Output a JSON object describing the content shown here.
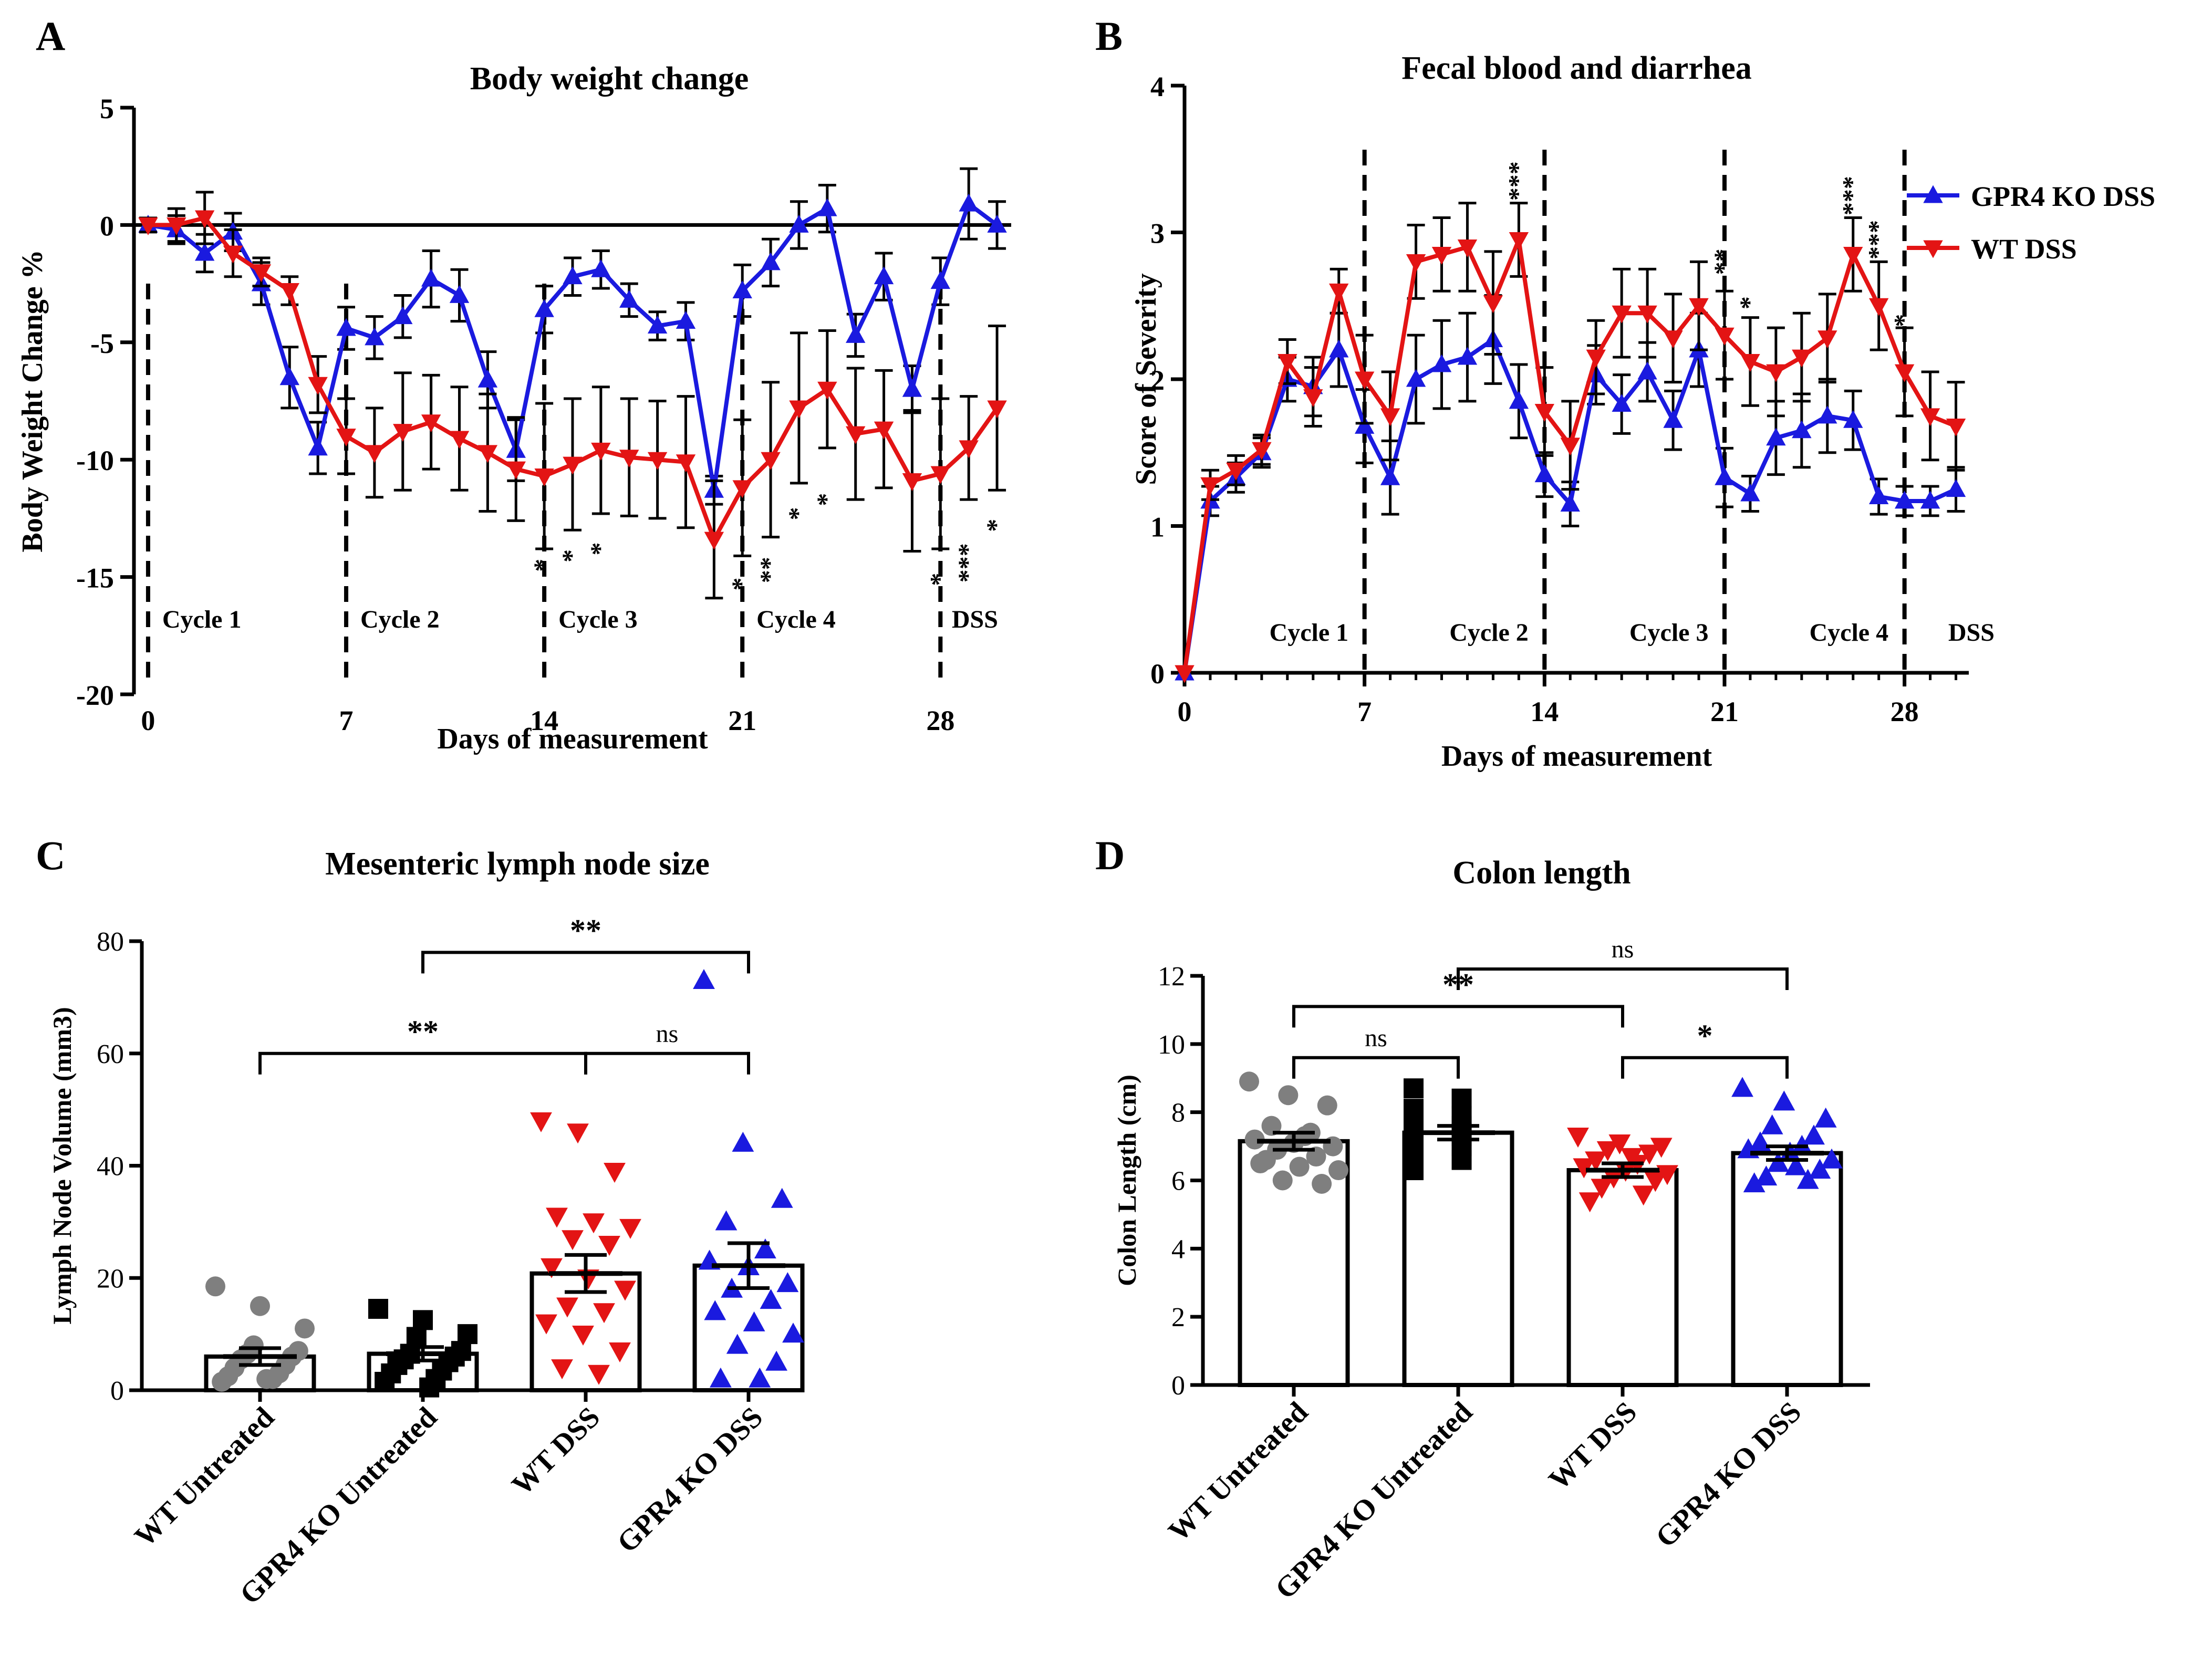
{
  "colors": {
    "ko": "#1a1adf",
    "wt": "#e31414",
    "untreated_wt": "#7f7f7f",
    "untreated_ko": "#000000",
    "axis": "#000000"
  },
  "chart_data": [
    {
      "panel": "A",
      "type": "line",
      "title": "Body weight change",
      "xlabel": "Days of measurement",
      "ylabel": "Body Weight Change %",
      "xlim": [
        -0.5,
        30.5
      ],
      "ylim": [
        -20,
        5
      ],
      "xticks": [
        "0",
        "7",
        "14",
        "21",
        "28"
      ],
      "yticks": [
        "5",
        "0",
        "-5",
        "-10",
        "-15",
        "-20"
      ],
      "cycle_lines": [
        0,
        7,
        14,
        21,
        28
      ],
      "cycle_labels": [
        {
          "x": 0.5,
          "label": "Cycle 1"
        },
        {
          "x": 7.5,
          "label": "Cycle 2"
        },
        {
          "x": 14.5,
          "label": "Cycle 3"
        },
        {
          "x": 21.5,
          "label": "Cycle 4"
        },
        {
          "x": 28.4,
          "label": "DSS"
        }
      ],
      "series": [
        {
          "name": "GPR4 KO DSS",
          "color": "#1a1adf",
          "marker": "triangle-up",
          "x": [
            0,
            1,
            2,
            3,
            4,
            5,
            6,
            7,
            8,
            9,
            10,
            11,
            12,
            13,
            14,
            15,
            16,
            17,
            18,
            19,
            20,
            21,
            22,
            23,
            24,
            25,
            26,
            27,
            28,
            29,
            30
          ],
          "y": [
            0,
            -0.2,
            -1.2,
            -0.3,
            -2.5,
            -6.5,
            -9.5,
            -4.4,
            -4.8,
            -3.9,
            -2.3,
            -3,
            -6.6,
            -9.6,
            -3.6,
            -2.2,
            -1.9,
            -3.2,
            -4.3,
            -4.1,
            -11.3,
            -2.8,
            -1.6,
            0,
            0.7,
            -4.7,
            -2.2,
            -7,
            -2.4,
            0.9,
            0
          ],
          "err": [
            0.3,
            0.6,
            0.8,
            0.8,
            0.9,
            1.3,
            1.1,
            0.9,
            0.9,
            0.9,
            1.2,
            1.1,
            1.2,
            1.3,
            1.0,
            0.8,
            0.8,
            0.7,
            0.6,
            0.8,
            0.6,
            1.1,
            1.0,
            1.0,
            1.0,
            0.9,
            1.0,
            1.0,
            1.0,
            1.5,
            1.0
          ]
        },
        {
          "name": "WT DSS",
          "color": "#e31414",
          "marker": "triangle-down",
          "x": [
            0,
            1,
            2,
            3,
            4,
            5,
            6,
            7,
            8,
            9,
            10,
            11,
            12,
            13,
            14,
            15,
            16,
            17,
            18,
            19,
            20,
            21,
            22,
            23,
            24,
            25,
            26,
            27,
            28,
            29,
            30
          ],
          "y": [
            0,
            0,
            0.3,
            -1.2,
            -2,
            -2.8,
            -6.8,
            -9,
            -9.7,
            -8.8,
            -8.4,
            -9.1,
            -9.7,
            -10.4,
            -10.7,
            -10.2,
            -9.6,
            -9.9,
            -10,
            -10.1,
            -13.4,
            -11.2,
            -10,
            -7.8,
            -7,
            -8.9,
            -8.7,
            -10.9,
            -10.6,
            -9.5,
            -7.8
          ],
          "err": [
            0.3,
            0.7,
            1.1,
            1.0,
            0.6,
            0.6,
            1.2,
            1.6,
            1.9,
            2.5,
            2.0,
            2.2,
            2.5,
            2.2,
            3.1,
            2.8,
            2.7,
            2.5,
            2.5,
            2.8,
            2.5,
            2.9,
            3.3,
            3.2,
            2.5,
            2.8,
            2.5,
            3.0,
            3.2,
            2.2,
            3.5
          ]
        }
      ],
      "annotations": [
        {
          "x": 14,
          "y": -14.5,
          "text": "*"
        },
        {
          "x": 15,
          "y": -14.1,
          "text": "*"
        },
        {
          "x": 16,
          "y": -13.8,
          "text": "*"
        },
        {
          "x": 21,
          "y": -15.3,
          "text": "*"
        },
        {
          "x": 22,
          "y": -14.7,
          "text": "**"
        },
        {
          "x": 23,
          "y": -12.3,
          "text": "*"
        },
        {
          "x": 24,
          "y": -11.7,
          "text": "*"
        },
        {
          "x": 28,
          "y": -15.1,
          "text": "*"
        },
        {
          "x": 29,
          "y": -14.4,
          "text": "***"
        },
        {
          "x": 30,
          "y": -12.8,
          "text": "*"
        }
      ]
    },
    {
      "panel": "B",
      "type": "line",
      "title": "Fecal blood and diarrhea",
      "xlabel": "Days of measurement",
      "ylabel": "Score of Severity",
      "xlim": [
        0,
        30.5
      ],
      "ylim": [
        0,
        4
      ],
      "xticks": [
        "0",
        "7",
        "14",
        "21",
        "28"
      ],
      "yticks": [
        "0",
        "1",
        "2",
        "3",
        "4"
      ],
      "cycle_lines": [
        7,
        14,
        21,
        28
      ],
      "cycle_labels": [
        {
          "x": 3.3,
          "label": "Cycle 1"
        },
        {
          "x": 10.3,
          "label": "Cycle 2"
        },
        {
          "x": 17.3,
          "label": "Cycle 3"
        },
        {
          "x": 24.3,
          "label": "Cycle 4"
        },
        {
          "x": 29.7,
          "label": "DSS"
        }
      ],
      "legend": {
        "placement": "top-right",
        "entries": [
          "GPR4 KO DSS",
          "WT DSS"
        ]
      },
      "series": [
        {
          "name": "GPR4 KO DSS",
          "color": "#1a1adf",
          "marker": "triangle-up",
          "x": [
            0,
            1,
            2,
            3,
            4,
            5,
            6,
            7,
            8,
            9,
            10,
            11,
            12,
            13,
            14,
            15,
            16,
            17,
            18,
            19,
            20,
            21,
            22,
            23,
            24,
            25,
            26,
            27,
            28,
            29,
            30
          ],
          "y": [
            0,
            1.17,
            1.33,
            1.5,
            2.0,
            1.95,
            2.2,
            1.68,
            1.33,
            2.0,
            2.1,
            2.15,
            2.27,
            1.85,
            1.35,
            1.15,
            2.03,
            1.83,
            2.05,
            1.72,
            2.2,
            1.33,
            1.22,
            1.6,
            1.65,
            1.75,
            1.72,
            1.2,
            1.17,
            1.17,
            1.25
          ],
          "err": [
            0,
            0.1,
            0.1,
            0.1,
            0.15,
            0.2,
            0.25,
            0.25,
            0.25,
            0.3,
            0.3,
            0.3,
            0.3,
            0.25,
            0.15,
            0.15,
            0.2,
            0.2,
            0.2,
            0.2,
            0.25,
            0.2,
            0.12,
            0.25,
            0.25,
            0.25,
            0.2,
            0.12,
            0.1,
            0.1,
            0.15
          ]
        },
        {
          "name": "WT DSS",
          "color": "#e31414",
          "marker": "triangle-down",
          "x": [
            0,
            1,
            2,
            3,
            4,
            5,
            6,
            7,
            8,
            9,
            10,
            11,
            12,
            13,
            14,
            15,
            16,
            17,
            18,
            19,
            20,
            21,
            22,
            23,
            24,
            25,
            26,
            27,
            28,
            29,
            30
          ],
          "y": [
            0,
            1.28,
            1.38,
            1.52,
            2.12,
            1.88,
            2.6,
            2.0,
            1.75,
            2.8,
            2.85,
            2.9,
            2.52,
            2.95,
            1.78,
            1.55,
            2.15,
            2.45,
            2.45,
            2.28,
            2.5,
            2.3,
            2.12,
            2.05,
            2.15,
            2.28,
            2.85,
            2.5,
            2.05,
            1.75,
            1.68
          ],
          "err": [
            0,
            0.1,
            0.1,
            0.1,
            0.15,
            0.2,
            0.15,
            0.3,
            0.3,
            0.25,
            0.25,
            0.3,
            0.35,
            0.25,
            0.3,
            0.3,
            0.25,
            0.3,
            0.3,
            0.3,
            0.3,
            0.3,
            0.3,
            0.3,
            0.3,
            0.3,
            0.25,
            0.3,
            0.3,
            0.3,
            0.3
          ]
        }
      ],
      "annotations": [
        {
          "x": 13,
          "y": 3.35,
          "text": "***"
        },
        {
          "x": 21,
          "y": 2.8,
          "text": "**"
        },
        {
          "x": 22,
          "y": 2.52,
          "text": "*"
        },
        {
          "x": 26,
          "y": 3.25,
          "text": "***"
        },
        {
          "x": 27,
          "y": 2.95,
          "text": "***"
        },
        {
          "x": 28,
          "y": 2.4,
          "text": "*"
        }
      ]
    },
    {
      "panel": "C",
      "type": "bar",
      "title": "Mesenteric lymph node size",
      "xlabel": "",
      "ylabel": "Lymph Node Volume (mm3)",
      "ylim": [
        0,
        80
      ],
      "yticks": [
        "0",
        "20",
        "40",
        "60",
        "80"
      ],
      "categories": [
        "WT Untreated",
        "GPR4 KO Untreated",
        "WT DSS",
        "GPR4 KO DSS"
      ],
      "means": [
        6,
        6.5,
        20.8,
        22.2
      ],
      "sem": [
        1.5,
        1.2,
        3.3,
        4
      ],
      "markers": [
        "circle",
        "square",
        "triangle-down",
        "triangle-up"
      ],
      "colors": [
        "#7f7f7f",
        "#000000",
        "#e31414",
        "#1a1adf"
      ],
      "points": [
        [
          18.5,
          15,
          11,
          8,
          7,
          6.5,
          6,
          5.5,
          4.5,
          4,
          3,
          2.5,
          2,
          1.5,
          2
        ],
        [
          14.5,
          12.5,
          10,
          9.5,
          7,
          6.5,
          6,
          5.5,
          5,
          4.5,
          3.5,
          3,
          2,
          1.5,
          0.5
        ],
        [
          48,
          46,
          39,
          31,
          30,
          29,
          27,
          26,
          22,
          20,
          18,
          15,
          14,
          12,
          10,
          7,
          4,
          3
        ],
        [
          73,
          44,
          34,
          30,
          25,
          23,
          22,
          19,
          18,
          16,
          14,
          12,
          10,
          8,
          5,
          2,
          2
        ]
      ],
      "comparisons": [
        {
          "from": 0,
          "to": 2,
          "y": 60,
          "label": "**"
        },
        {
          "from": 1,
          "to": 3,
          "y": 78,
          "label": "**"
        },
        {
          "from": 2,
          "to": 3,
          "y": 60,
          "label": "ns"
        }
      ]
    },
    {
      "panel": "D",
      "type": "bar",
      "title": "Colon length",
      "xlabel": "",
      "ylabel": "Colon Length (cm)",
      "ylim": [
        0,
        12
      ],
      "yticks": [
        "0",
        "2",
        "4",
        "6",
        "8",
        "10",
        "12"
      ],
      "categories": [
        "WT Untreated",
        "GPR4 KO Untreated",
        "WT DSS",
        "GPR4 KO DSS"
      ],
      "means": [
        7.15,
        7.4,
        6.3,
        6.8
      ],
      "sem": [
        0.25,
        0.2,
        0.2,
        0.2
      ],
      "markers": [
        "circle",
        "square",
        "triangle-down",
        "triangle-up"
      ],
      "colors": [
        "#7f7f7f",
        "#000000",
        "#e31414",
        "#1a1adf"
      ],
      "points": [
        [
          8.9,
          8.5,
          8.2,
          7.6,
          7.4,
          7.2,
          7.1,
          7.0,
          6.9,
          6.7,
          6.5,
          6.4,
          6.3,
          6.0,
          5.9,
          6.6,
          7.3
        ],
        [
          8.7,
          8.4,
          8.1,
          7.9,
          7.8,
          7.6,
          7.5,
          7.3,
          7.2,
          7.0,
          6.8,
          6.6,
          6.3,
          7.4
        ],
        [
          7.3,
          7.1,
          7.0,
          6.9,
          6.8,
          6.6,
          6.5,
          6.4,
          6.3,
          6.2,
          6.1,
          6.0,
          5.8,
          5.6,
          5.4,
          6.7
        ],
        [
          8.7,
          8.3,
          7.8,
          7.6,
          7.3,
          7.1,
          7.0,
          6.9,
          6.8,
          6.6,
          6.5,
          6.3,
          6.1,
          6.0,
          5.9,
          6.4
        ]
      ],
      "comparisons": [
        {
          "from": 0,
          "to": 1,
          "y": 9.6,
          "label": "ns"
        },
        {
          "from": 0,
          "to": 2,
          "y": 11.1,
          "label": "**"
        },
        {
          "from": 1,
          "to": 3,
          "y": 12.2,
          "label": "ns"
        },
        {
          "from": 2,
          "to": 3,
          "y": 9.6,
          "label": "*"
        }
      ]
    }
  ]
}
